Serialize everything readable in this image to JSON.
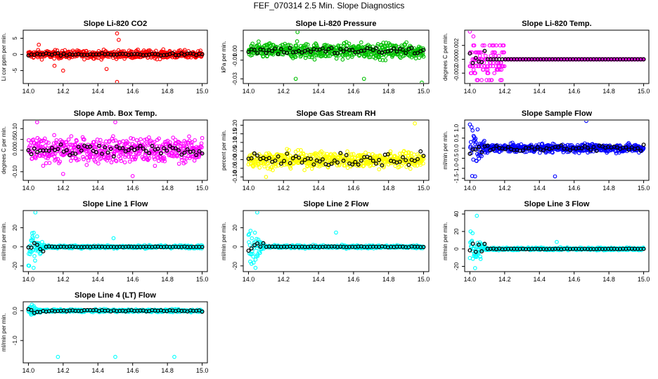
{
  "title": "FEF_070314  2.5 Min. Slope Diagnostics",
  "colors": {
    "black": "#000000"
  },
  "chart_data": [
    {
      "type": "scatter",
      "id": "co2",
      "title": "Slope Li-820 CO2",
      "ylabel": "Li cor ppm per min.",
      "color": "#ff0000",
      "x_range": [
        14.0,
        15.0
      ],
      "xlim": [
        13.97,
        15.03
      ],
      "x_ticks": [
        "14.0",
        "14.2",
        "14.4",
        "14.6",
        "14.8",
        "15.0"
      ],
      "ylim": [
        -9,
        7.5
      ],
      "y_ticks": [
        -5,
        0,
        5
      ],
      "y_tick_labels": [
        "-5",
        "0",
        "5"
      ],
      "noise": 1.2,
      "base": 0,
      "black_noise": 0.35,
      "outliers": [
        [
          14.51,
          6.5
        ],
        [
          14.52,
          4.5
        ],
        [
          14.51,
          -8.5
        ],
        [
          14.2,
          -5
        ],
        [
          14.45,
          -4.5
        ],
        [
          14.15,
          -3.5
        ],
        [
          14.06,
          3.0
        ]
      ]
    },
    {
      "type": "scatter",
      "id": "pressure",
      "title": "Slope Li-820 Pressure",
      "ylabel": "kPa per min.",
      "color": "#00c000",
      "x_range": [
        14.0,
        15.0
      ],
      "xlim": [
        13.97,
        15.03
      ],
      "x_ticks": [
        "14.0",
        "14.2",
        "14.4",
        "14.6",
        "14.8",
        "15.0"
      ],
      "ylim": [
        -0.035,
        0.022
      ],
      "y_ticks": [
        -0.03,
        -0.01,
        0.0
      ],
      "y_tick_labels": [
        "-0.03",
        "-0.01",
        "0.00"
      ],
      "noise": 0.008,
      "base": 0,
      "black_noise": 0.004,
      "outliers": [
        [
          14.27,
          -0.03
        ],
        [
          14.66,
          -0.03
        ],
        [
          14.99,
          -0.034
        ],
        [
          14.28,
          0.02
        ]
      ]
    },
    {
      "type": "scatter",
      "id": "temp",
      "title": "Slope Li-820 Temp.",
      "ylabel": "degrees C per min.",
      "color": "#ff00ff",
      "x_range": [
        14.0,
        15.0
      ],
      "xlim": [
        13.97,
        15.03
      ],
      "x_ticks": [
        "14.0",
        "14.2",
        "14.4",
        "14.6",
        "14.8",
        "15.0"
      ],
      "ylim": [
        -0.0035,
        0.0042
      ],
      "y_ticks": [
        -0.002,
        0.0,
        0.002
      ],
      "y_tick_labels": [
        "-0.002",
        "0.000",
        "0.002"
      ],
      "noise": 0.0,
      "base": 0,
      "black_noise": 0.0,
      "spike_until": 14.2,
      "spike_amp": 0.0035,
      "outliers": [
        [
          14.0,
          0.004
        ],
        [
          14.02,
          0.0033
        ],
        [
          14.04,
          -0.003
        ]
      ]
    },
    {
      "type": "scatter",
      "id": "amb",
      "title": "Slope Amb. Box Temp.",
      "ylabel": "degrees C per min.",
      "color": "#ff00ff",
      "x_range": [
        14.0,
        15.0
      ],
      "xlim": [
        13.97,
        15.03
      ],
      "x_ticks": [
        "14.0",
        "14.2",
        "14.4",
        "14.6",
        "14.8",
        "15.0"
      ],
      "ylim": [
        -0.14,
        0.14
      ],
      "y_ticks": [
        -0.1,
        0.0,
        0.05,
        0.1
      ],
      "y_tick_labels": [
        "-0.10",
        "0.00",
        "0.05",
        "0.10"
      ],
      "noise": 0.055,
      "base": 0,
      "black_noise": 0.03,
      "outliers": [
        [
          14.05,
          0.13
        ],
        [
          14.5,
          0.13
        ],
        [
          14.6,
          -0.12
        ],
        [
          14.2,
          -0.11
        ]
      ]
    },
    {
      "type": "scatter",
      "id": "rh",
      "title": "Slope Gas Stream RH",
      "ylabel": "percent per min.",
      "color": "#ffff00",
      "x_range": [
        14.0,
        15.0
      ],
      "xlim": [
        13.97,
        15.03
      ],
      "x_ticks": [
        "14.0",
        "14.2",
        "14.4",
        "14.6",
        "14.8",
        "15.0"
      ],
      "ylim": [
        -0.12,
        0.23
      ],
      "y_ticks": [
        -0.1,
        -0.05,
        0.0,
        0.05,
        0.1,
        0.15,
        0.2
      ],
      "y_tick_labels": [
        "-0.10",
        "-0.05",
        "0.00",
        "0.05",
        "0.10",
        "0.15",
        "0.20"
      ],
      "noise": 0.045,
      "base": 0,
      "black_noise": 0.04,
      "outliers": [
        [
          14.95,
          0.21
        ],
        [
          14.1,
          -0.1
        ]
      ]
    },
    {
      "type": "scatter",
      "id": "sample",
      "title": "Slope Sample Flow",
      "ylabel": "ml/min per min.",
      "color": "#0000ff",
      "x_range": [
        14.0,
        15.0
      ],
      "xlim": [
        13.97,
        15.03
      ],
      "x_ticks": [
        "14.0",
        "14.2",
        "14.4",
        "14.6",
        "14.8",
        "15.0"
      ],
      "ylim": [
        -1.6,
        1.4
      ],
      "y_ticks": [
        -1.5,
        -1.0,
        -0.5,
        0.0,
        0.5,
        1.0
      ],
      "y_tick_labels": [
        "-1.5",
        "-1.0",
        "-0.5",
        "0.0",
        "0.5",
        "1.0"
      ],
      "noise": 0.2,
      "base": 0,
      "black_noise": 0.15,
      "spike_until": 14.12,
      "spike_amp": 1.2,
      "outliers": [
        [
          14.67,
          1.35
        ],
        [
          14.49,
          -1.4
        ],
        [
          14.03,
          -1.4
        ]
      ]
    },
    {
      "type": "scatter",
      "id": "line1",
      "title": "Slope Line 1 Flow",
      "ylabel": "ml/min per min.",
      "color": "#00ffff",
      "x_range": [
        14.0,
        15.0
      ],
      "xlim": [
        13.97,
        15.03
      ],
      "x_ticks": [
        "14.0",
        "14.2",
        "14.4",
        "14.6",
        "14.8",
        "15.0"
      ],
      "ylim": [
        -26,
        38
      ],
      "y_ticks": [
        -20,
        0,
        20
      ],
      "y_tick_labels": [
        "-20",
        "0",
        "20"
      ],
      "noise": 1.5,
      "base": 0,
      "black_noise": 0.3,
      "spike_until": 14.1,
      "spike_amp": 25,
      "outliers": [
        [
          14.04,
          36
        ],
        [
          14.49,
          9
        ],
        [
          14.03,
          -22
        ]
      ]
    },
    {
      "type": "scatter",
      "id": "line2",
      "title": "Slope Line 2 Flow",
      "ylabel": "ml/min per min.",
      "color": "#00ffff",
      "x_range": [
        14.0,
        15.0
      ],
      "xlim": [
        13.97,
        15.03
      ],
      "x_ticks": [
        "14.0",
        "14.2",
        "14.4",
        "14.6",
        "14.8",
        "15.0"
      ],
      "ylim": [
        -26,
        38
      ],
      "y_ticks": [
        -20,
        0,
        20
      ],
      "y_tick_labels": [
        "-20",
        "0",
        "20"
      ],
      "noise": 1.5,
      "base": 0,
      "black_noise": 0.4,
      "spike_until": 14.1,
      "spike_amp": 25,
      "outliers": [
        [
          14.05,
          36
        ],
        [
          14.5,
          15
        ],
        [
          14.04,
          -22
        ]
      ]
    },
    {
      "type": "scatter",
      "id": "line3",
      "title": "Slope Line 3 Flow",
      "ylabel": "ml/min per min.",
      "color": "#00ffff",
      "x_range": [
        14.0,
        15.0
      ],
      "xlim": [
        13.97,
        15.03
      ],
      "x_ticks": [
        "14.0",
        "14.2",
        "14.4",
        "14.6",
        "14.8",
        "15.0"
      ],
      "ylim": [
        -26,
        44
      ],
      "y_ticks": [
        -20,
        0,
        20,
        40
      ],
      "y_tick_labels": [
        "-20",
        "0",
        "20",
        "40"
      ],
      "noise": 1.5,
      "base": 0,
      "black_noise": 0.4,
      "spike_until": 14.1,
      "spike_amp": 28,
      "outliers": [
        [
          14.04,
          38
        ],
        [
          14.5,
          8
        ],
        [
          14.03,
          -22
        ]
      ]
    },
    {
      "type": "scatter",
      "id": "line4",
      "title": "Slope Line 4 (LT) Flow",
      "ylabel": "ml/min per min.",
      "color": "#00ffff",
      "x_range": [
        14.0,
        15.0
      ],
      "xlim": [
        13.97,
        15.03
      ],
      "x_ticks": [
        "14.0",
        "14.2",
        "14.4",
        "14.6",
        "14.8",
        "15.0"
      ],
      "ylim": [
        -1.75,
        0.3
      ],
      "y_ticks": [
        -1.0,
        0.0
      ],
      "y_tick_labels": [
        "-1.0",
        "0.0"
      ],
      "noise": 0.04,
      "base": 0,
      "black_noise": 0.03,
      "spike_until": 14.08,
      "spike_amp": 0.2,
      "outliers": [
        [
          14.17,
          -1.55
        ],
        [
          14.5,
          -1.55
        ],
        [
          14.84,
          -1.55
        ],
        [
          14.02,
          0.2
        ]
      ]
    }
  ]
}
